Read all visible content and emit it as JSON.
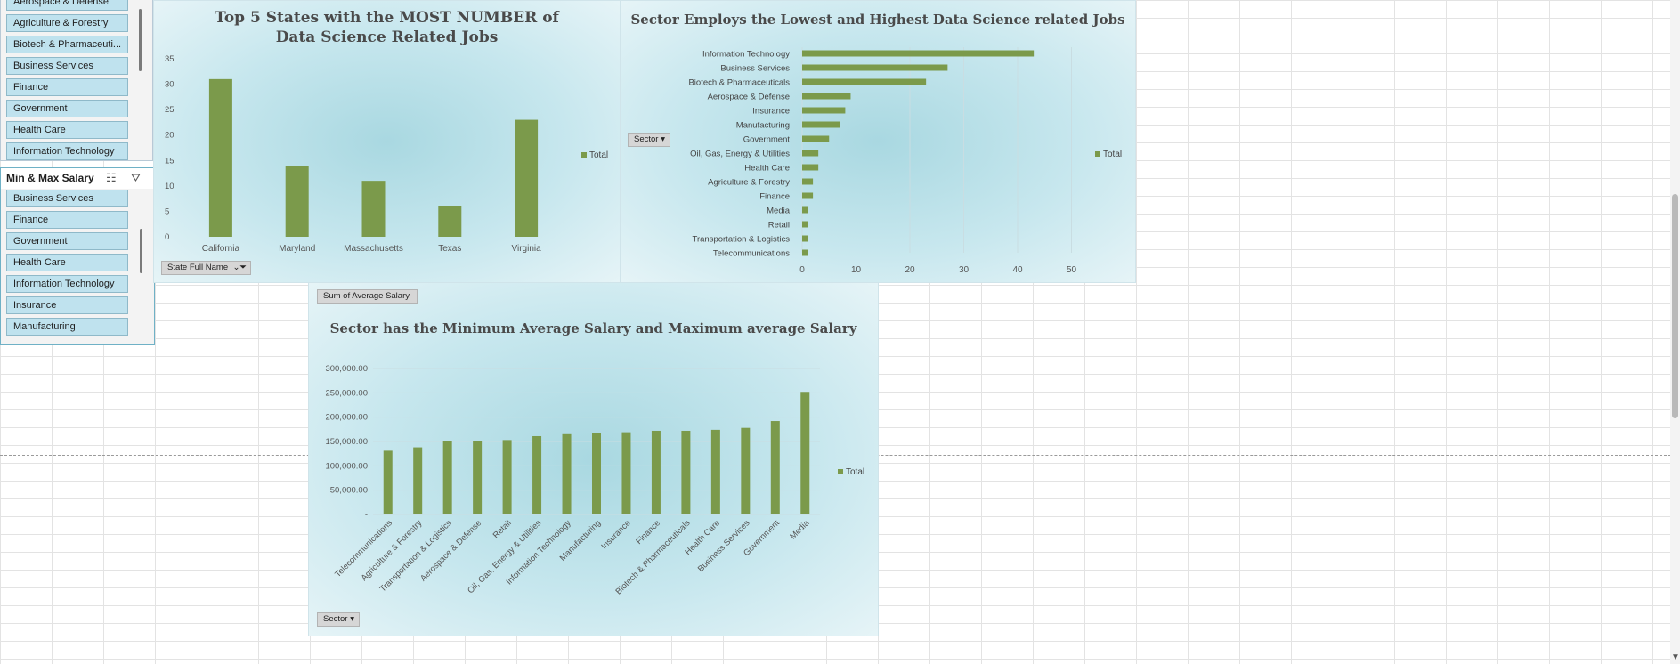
{
  "sheet": {
    "accent": "#7b9a4b"
  },
  "slicer_top": {
    "items": [
      "Aerospace & Defense",
      "Agriculture & Forestry",
      "Biotech & Pharmaceuti...",
      "Business Services",
      "Finance",
      "Government",
      "Health Care",
      "Information Technology"
    ]
  },
  "slicer_salary": {
    "title": "Min & Max Salary",
    "items": [
      "Business Services",
      "Finance",
      "Government",
      "Health Care",
      "Information Technology",
      "Insurance",
      "Manufacturing"
    ]
  },
  "chart1": {
    "legend": "Total",
    "filter_label": "State Full Name"
  },
  "chart2": {
    "legend": "Total",
    "filter_label": "Sector"
  },
  "chart3": {
    "legend": "Total",
    "value_button": "Sum of Average Salary",
    "filter_label": "Sector"
  },
  "chart_data": [
    {
      "type": "bar",
      "title": "Top 5 States with the MOST NUMBER of Data Science Related Jobs",
      "categories": [
        "California",
        "Maryland",
        "Massachusetts",
        "Texas",
        "Virginia"
      ],
      "series": [
        {
          "name": "Total",
          "values": [
            31,
            14,
            11,
            6,
            23
          ]
        }
      ],
      "ylim": [
        0,
        35
      ],
      "yticks": [
        "35",
        "30",
        "25",
        "20",
        "15",
        "10",
        "5",
        "0"
      ],
      "legend_position": "right",
      "color": "#7b9a4b"
    },
    {
      "type": "bar",
      "orientation": "horizontal",
      "title": "Sector Employs the Lowest and Highest Data Science related Jobs",
      "categories": [
        "Information Technology",
        "Business Services",
        "Biotech & Pharmaceuticals",
        "Aerospace & Defense",
        "Insurance",
        "Manufacturing",
        "Government",
        "Oil, Gas, Energy & Utilities",
        "Health Care",
        "Agriculture & Forestry",
        "Finance",
        "Media",
        "Retail",
        "Transportation & Logistics",
        "Telecommunications"
      ],
      "series": [
        {
          "name": "Total",
          "values": [
            43,
            27,
            23,
            9,
            8,
            7,
            5,
            3,
            3,
            2,
            2,
            1,
            1,
            1,
            1
          ]
        }
      ],
      "xlim": [
        0,
        55
      ],
      "xticks": [
        "0",
        "10",
        "20",
        "30",
        "40",
        "50"
      ],
      "legend_position": "right",
      "color": "#7b9a4b"
    },
    {
      "type": "bar",
      "title": "Sector has the Minimum Average Salary and Maximum average Salary",
      "categories": [
        "Telecommunications",
        "Agriculture & Forestry",
        "Transportation & Logistics",
        "Aerospace & Defense",
        "Retail",
        "Oil, Gas, Energy & Utilities",
        "Information Technology",
        "Manufacturing",
        "Insurance",
        "Finance",
        "Biotech & Pharmaceuticals",
        "Health Care",
        "Business Services",
        "Government",
        "Media"
      ],
      "series": [
        {
          "name": "Total",
          "values": [
            131000,
            138000,
            151000,
            151000,
            153000,
            161000,
            165000,
            168000,
            169000,
            172000,
            172000,
            174000,
            178000,
            192000,
            252000
          ]
        }
      ],
      "ylim": [
        0,
        300000
      ],
      "yticks": [
        "300,000.00",
        "250,000.00",
        "200,000.00",
        "150,000.00",
        "100,000.00",
        "50,000.00",
        "-"
      ],
      "legend_position": "right",
      "color": "#7b9a4b"
    }
  ]
}
